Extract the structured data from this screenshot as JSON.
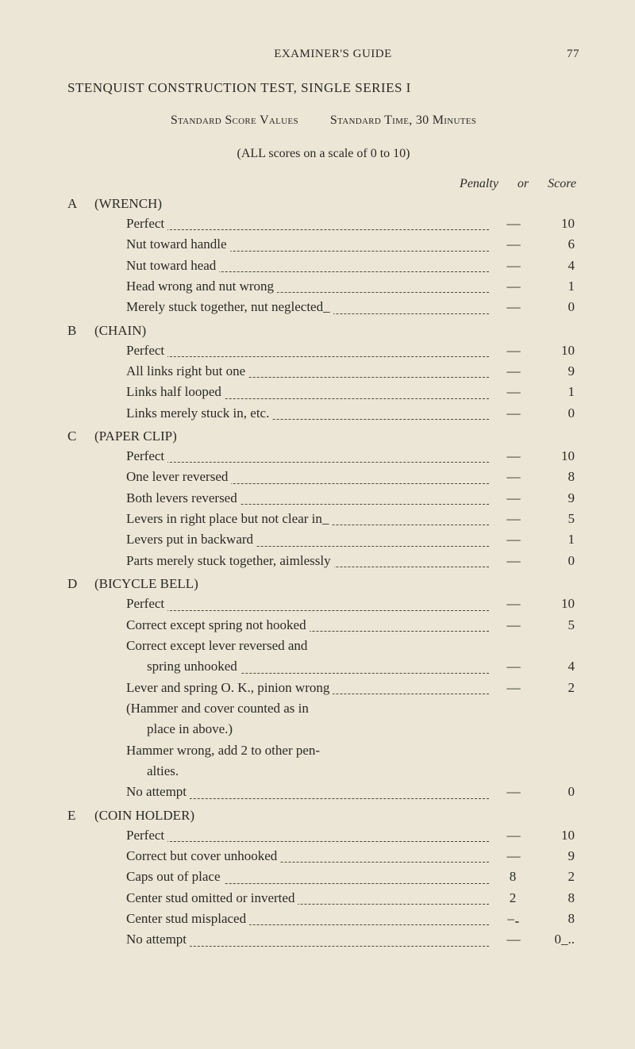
{
  "header": {
    "book_title": "EXAMINER'S GUIDE",
    "page_number": "77"
  },
  "title": "STENQUIST CONSTRUCTION TEST, SINGLE SERIES I",
  "standard": {
    "score_values": "Standard Score Values",
    "time": "Standard Time, 30 Minutes"
  },
  "instruction": "(ALL scores on a scale of 0 to 10)",
  "col_heads": {
    "penalty": "Penalty",
    "or": "or",
    "score": "Score"
  },
  "dash": "– –",
  "sections": [
    {
      "letter": "A",
      "name": "(WRENCH)",
      "rows": [
        {
          "label": "Perfect",
          "penalty": "– –",
          "score": "10"
        },
        {
          "label": "Nut toward handle",
          "penalty": "– –",
          "score": "6"
        },
        {
          "label": "Nut toward head",
          "penalty": "– –",
          "score": "4"
        },
        {
          "label": "Head wrong and nut wrong",
          "penalty": "– –",
          "score": "1"
        },
        {
          "label": "Merely stuck together, nut neglected_",
          "penalty": "– –",
          "score": "0"
        }
      ]
    },
    {
      "letter": "B",
      "name": "(CHAIN)",
      "rows": [
        {
          "label": "Perfect",
          "penalty": "– –",
          "score": "10"
        },
        {
          "label": "All links right but one",
          "penalty": "– –",
          "score": "9"
        },
        {
          "label": "Links half looped",
          "penalty": "– –",
          "score": "1"
        },
        {
          "label": "Links merely stuck in, etc.",
          "penalty": "– –",
          "score": "0"
        }
      ]
    },
    {
      "letter": "C",
      "name": "(PAPER CLIP)",
      "rows": [
        {
          "label": "Perfect",
          "penalty": "– –",
          "score": "10"
        },
        {
          "label": "One lever reversed",
          "penalty": "– –",
          "score": "8"
        },
        {
          "label": "Both levers reversed",
          "penalty": "– –",
          "score": "9"
        },
        {
          "label": "Levers in right place but not clear in_",
          "penalty": "– –",
          "score": "5"
        },
        {
          "label": "Levers put in backward",
          "penalty": "– –",
          "score": "1"
        },
        {
          "label": "Parts merely stuck together, aimlessly",
          "penalty": "– –",
          "score": "0"
        }
      ]
    },
    {
      "letter": "D",
      "name": "(BICYCLE BELL)",
      "rows": [
        {
          "label": "Perfect",
          "penalty": "– –",
          "score": "10"
        },
        {
          "label": "Correct except spring not hooked",
          "penalty": "– –",
          "score": "5"
        },
        {
          "label": "Correct except lever reversed and",
          "penalty": "",
          "score": "",
          "noleader": true
        },
        {
          "label": "spring unhooked",
          "penalty": "– –",
          "score": "4",
          "cont": true
        },
        {
          "label": "Lever and spring O. K., pinion wrong",
          "penalty": "– –",
          "score": "2"
        },
        {
          "label": "(Hammer and cover counted as in",
          "penalty": "",
          "score": "",
          "noleader": true
        },
        {
          "label": "place in above.)",
          "penalty": "",
          "score": "",
          "noleader": true,
          "cont": true
        },
        {
          "label": "Hammer wrong, add 2 to other pen-",
          "penalty": "",
          "score": "",
          "noleader": true
        },
        {
          "label": "alties.",
          "penalty": "",
          "score": "",
          "noleader": true,
          "cont": true
        },
        {
          "label": "No attempt",
          "penalty": "– –",
          "score": "0"
        }
      ]
    },
    {
      "letter": "E",
      "name": "(COIN HOLDER)",
      "rows": [
        {
          "label": "Perfect",
          "penalty": "– –",
          "score": "10"
        },
        {
          "label": "Correct but cover unhooked",
          "penalty": "– –",
          "score": "9"
        },
        {
          "label": "Caps out of place",
          "penalty": "8",
          "score": "2"
        },
        {
          "label": "Center stud omitted or inverted",
          "penalty": "2",
          "score": "8"
        },
        {
          "label": "Center stud misplaced",
          "penalty": "– ..",
          "score": "8"
        },
        {
          "label": "No attempt",
          "penalty": "– –",
          "score": "0_.."
        }
      ]
    }
  ]
}
